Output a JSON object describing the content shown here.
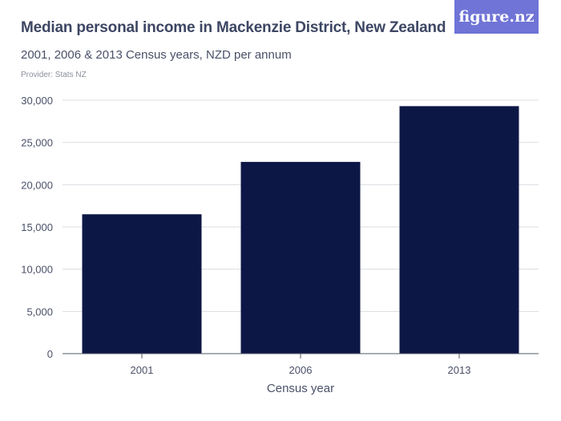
{
  "header": {
    "title": "Median personal income in Mackenzie District, New Zealand",
    "subtitle": "2001, 2006 & 2013 Census years, NZD per annum",
    "provider": "Provider: Stats NZ",
    "logo_text": "figure.nz"
  },
  "colors": {
    "bar": "#0d1746",
    "grid": "#dcdde3",
    "axis": "#555a6a",
    "logo_bg": "#6f74d6"
  },
  "chart_data": {
    "type": "bar",
    "categories": [
      "2001",
      "2006",
      "2013"
    ],
    "values": [
      16500,
      22700,
      29300
    ],
    "xlabel": "Census year",
    "ylabel": "",
    "ylim": [
      0,
      30000
    ],
    "yticks": [
      0,
      5000,
      10000,
      15000,
      20000,
      25000,
      30000
    ],
    "ytick_labels": [
      "0",
      "5,000",
      "10,000",
      "15,000",
      "20,000",
      "25,000",
      "30,000"
    ],
    "grid": true
  }
}
